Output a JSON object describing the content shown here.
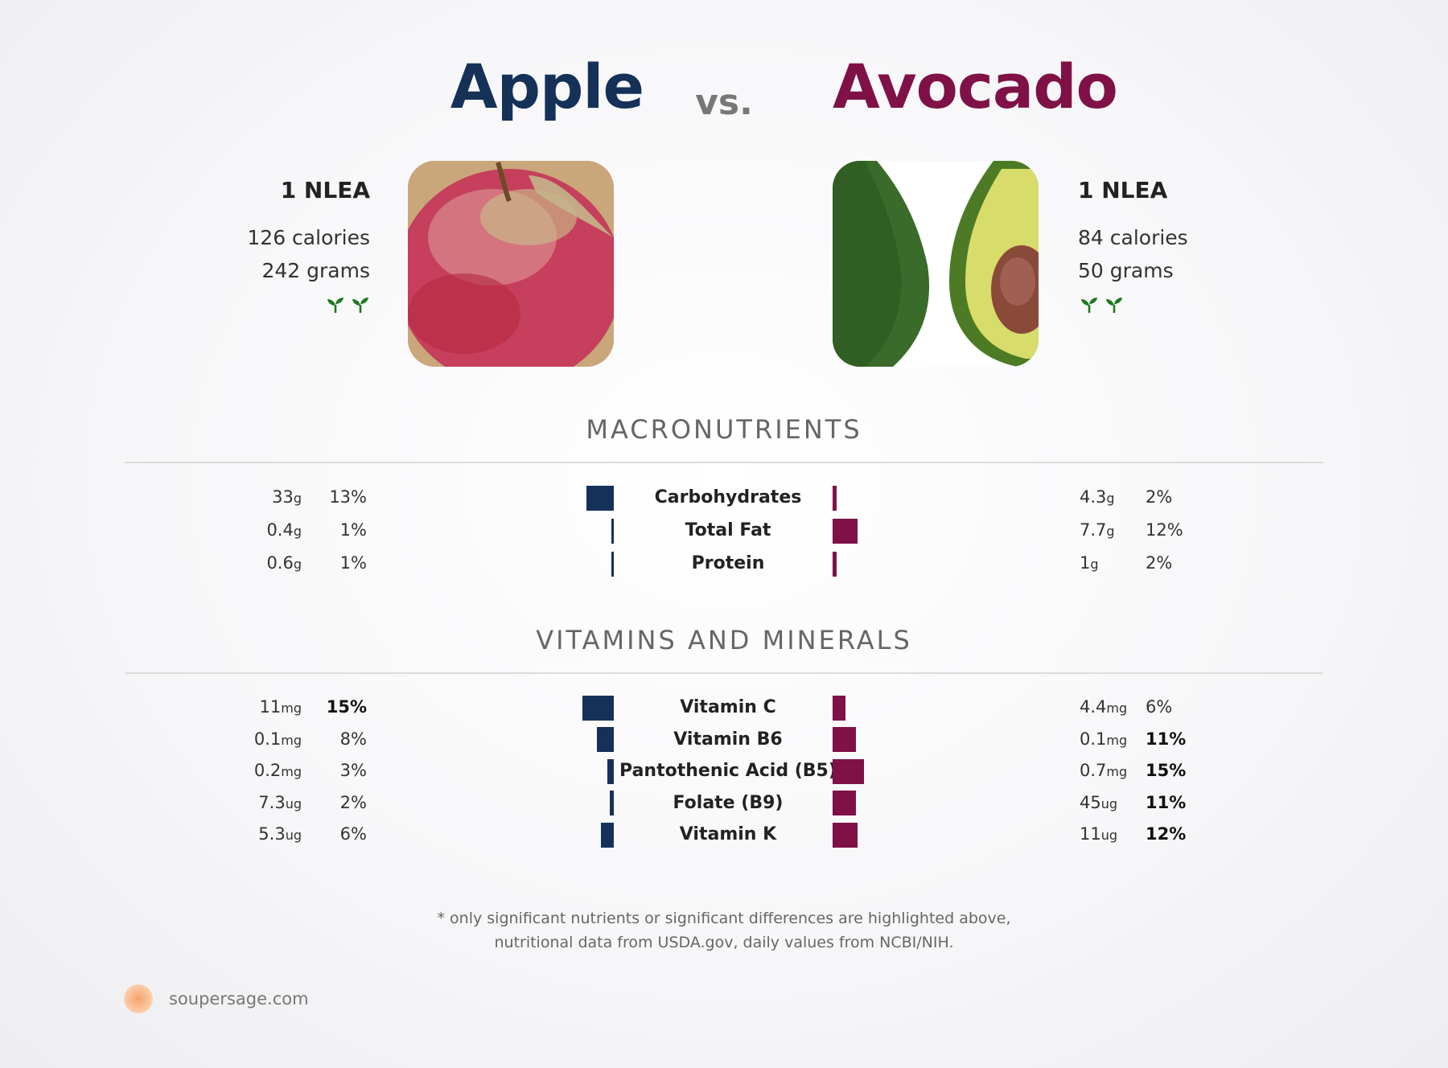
{
  "header": {
    "left_food": "Apple",
    "vs": "vs.",
    "right_food": "Avocado",
    "left_color": "#153158",
    "right_color": "#7f1147"
  },
  "left_info": {
    "serving": "1 NLEA",
    "calories": "126 calories",
    "grams": "242 grams",
    "icon": "sprout-icon"
  },
  "right_info": {
    "serving": "1 NLEA",
    "calories": "84 calories",
    "grams": "50 grams",
    "icon": "sprout-icon"
  },
  "sections": {
    "macros_title": "MACRONUTRIENTS",
    "vitamins_title": "VITAMINS AND MINERALS"
  },
  "chart_data": {
    "type": "bar",
    "macros": [
      {
        "name": "Carbohydrates",
        "left_amount": "33",
        "left_unit": "g",
        "left_dv": 13,
        "right_amount": "4.3",
        "right_unit": "g",
        "right_dv": 2
      },
      {
        "name": "Total Fat",
        "left_amount": "0.4",
        "left_unit": "g",
        "left_dv": 1,
        "right_amount": "7.7",
        "right_unit": "g",
        "right_dv": 12
      },
      {
        "name": "Protein",
        "left_amount": "0.6",
        "left_unit": "g",
        "left_dv": 1,
        "right_amount": "1",
        "right_unit": "g",
        "right_dv": 2
      }
    ],
    "vitamins": [
      {
        "name": "Vitamin C",
        "left_amount": "11",
        "left_unit": "mg",
        "left_dv": 15,
        "left_bold": true,
        "right_amount": "4.4",
        "right_unit": "mg",
        "right_dv": 6,
        "right_bold": false
      },
      {
        "name": "Vitamin B6",
        "left_amount": "0.1",
        "left_unit": "mg",
        "left_dv": 8,
        "left_bold": false,
        "right_amount": "0.1",
        "right_unit": "mg",
        "right_dv": 11,
        "right_bold": true
      },
      {
        "name": "Pantothenic Acid (B5)",
        "left_amount": "0.2",
        "left_unit": "mg",
        "left_dv": 3,
        "left_bold": false,
        "right_amount": "0.7",
        "right_unit": "mg",
        "right_dv": 15,
        "right_bold": true
      },
      {
        "name": "Folate (B9)",
        "left_amount": "7.3",
        "left_unit": "ug",
        "left_dv": 2,
        "left_bold": false,
        "right_amount": "45",
        "right_unit": "ug",
        "right_dv": 11,
        "right_bold": true
      },
      {
        "name": "Vitamin K",
        "left_amount": "5.3",
        "left_unit": "ug",
        "left_dv": 6,
        "left_bold": false,
        "right_amount": "11",
        "right_unit": "ug",
        "right_dv": 12,
        "right_bold": true
      }
    ]
  },
  "footnote": {
    "line1": "* only significant nutrients or significant differences are highlighted above,",
    "line2": "nutritional data from USDA.gov, daily values from NCBI/NIH."
  },
  "brand": {
    "name": "soupersage.com"
  }
}
